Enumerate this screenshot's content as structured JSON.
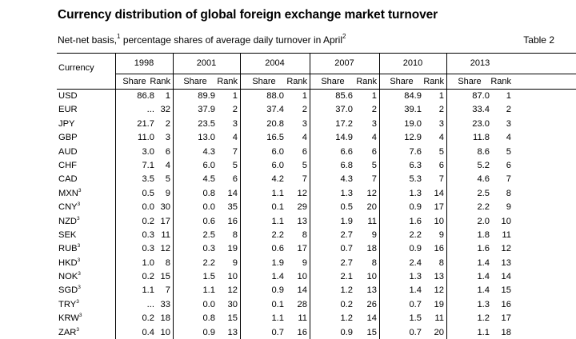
{
  "title": "Currency distribution of global foreign exchange market turnover",
  "subtitle": {
    "part1": "Net-net basis,",
    "note1": "1",
    "part2": " percentage shares of average daily turnover in April",
    "note2": "2"
  },
  "table_label": "Table 2",
  "header": {
    "currency": "Currency",
    "years": [
      "1998",
      "2001",
      "2004",
      "2007",
      "2010",
      "2013"
    ],
    "share": "Share",
    "rank": "Rank"
  },
  "rows": [
    {
      "currency": "USD",
      "note": "",
      "values": [
        [
          "86.8",
          "1"
        ],
        [
          "89.9",
          "1"
        ],
        [
          "88.0",
          "1"
        ],
        [
          "85.6",
          "1"
        ],
        [
          "84.9",
          "1"
        ],
        [
          "87.0",
          "1"
        ]
      ]
    },
    {
      "currency": "EUR",
      "note": "",
      "values": [
        [
          "...",
          "32"
        ],
        [
          "37.9",
          "2"
        ],
        [
          "37.4",
          "2"
        ],
        [
          "37.0",
          "2"
        ],
        [
          "39.1",
          "2"
        ],
        [
          "33.4",
          "2"
        ]
      ]
    },
    {
      "currency": "JPY",
      "note": "",
      "values": [
        [
          "21.7",
          "2"
        ],
        [
          "23.5",
          "3"
        ],
        [
          "20.8",
          "3"
        ],
        [
          "17.2",
          "3"
        ],
        [
          "19.0",
          "3"
        ],
        [
          "23.0",
          "3"
        ]
      ]
    },
    {
      "currency": "GBP",
      "note": "",
      "values": [
        [
          "11.0",
          "3"
        ],
        [
          "13.0",
          "4"
        ],
        [
          "16.5",
          "4"
        ],
        [
          "14.9",
          "4"
        ],
        [
          "12.9",
          "4"
        ],
        [
          "11.8",
          "4"
        ]
      ]
    },
    {
      "currency": "AUD",
      "note": "",
      "values": [
        [
          "3.0",
          "6"
        ],
        [
          "4.3",
          "7"
        ],
        [
          "6.0",
          "6"
        ],
        [
          "6.6",
          "6"
        ],
        [
          "7.6",
          "5"
        ],
        [
          "8.6",
          "5"
        ]
      ]
    },
    {
      "currency": "CHF",
      "note": "",
      "values": [
        [
          "7.1",
          "4"
        ],
        [
          "6.0",
          "5"
        ],
        [
          "6.0",
          "5"
        ],
        [
          "6.8",
          "5"
        ],
        [
          "6.3",
          "6"
        ],
        [
          "5.2",
          "6"
        ]
      ]
    },
    {
      "currency": "CAD",
      "note": "",
      "values": [
        [
          "3.5",
          "5"
        ],
        [
          "4.5",
          "6"
        ],
        [
          "4.2",
          "7"
        ],
        [
          "4.3",
          "7"
        ],
        [
          "5.3",
          "7"
        ],
        [
          "4.6",
          "7"
        ]
      ]
    },
    {
      "currency": "MXN",
      "note": "3",
      "values": [
        [
          "0.5",
          "9"
        ],
        [
          "0.8",
          "14"
        ],
        [
          "1.1",
          "12"
        ],
        [
          "1.3",
          "12"
        ],
        [
          "1.3",
          "14"
        ],
        [
          "2.5",
          "8"
        ]
      ]
    },
    {
      "currency": "CNY",
      "note": "3",
      "values": [
        [
          "0.0",
          "30"
        ],
        [
          "0.0",
          "35"
        ],
        [
          "0.1",
          "29"
        ],
        [
          "0.5",
          "20"
        ],
        [
          "0.9",
          "17"
        ],
        [
          "2.2",
          "9"
        ]
      ]
    },
    {
      "currency": "NZD",
      "note": "3",
      "values": [
        [
          "0.2",
          "17"
        ],
        [
          "0.6",
          "16"
        ],
        [
          "1.1",
          "13"
        ],
        [
          "1.9",
          "11"
        ],
        [
          "1.6",
          "10"
        ],
        [
          "2.0",
          "10"
        ]
      ]
    },
    {
      "currency": "SEK",
      "note": "",
      "values": [
        [
          "0.3",
          "11"
        ],
        [
          "2.5",
          "8"
        ],
        [
          "2.2",
          "8"
        ],
        [
          "2.7",
          "9"
        ],
        [
          "2.2",
          "9"
        ],
        [
          "1.8",
          "11"
        ]
      ]
    },
    {
      "currency": "RUB",
      "note": "3",
      "values": [
        [
          "0.3",
          "12"
        ],
        [
          "0.3",
          "19"
        ],
        [
          "0.6",
          "17"
        ],
        [
          "0.7",
          "18"
        ],
        [
          "0.9",
          "16"
        ],
        [
          "1.6",
          "12"
        ]
      ]
    },
    {
      "currency": "HKD",
      "note": "3",
      "values": [
        [
          "1.0",
          "8"
        ],
        [
          "2.2",
          "9"
        ],
        [
          "1.9",
          "9"
        ],
        [
          "2.7",
          "8"
        ],
        [
          "2.4",
          "8"
        ],
        [
          "1.4",
          "13"
        ]
      ]
    },
    {
      "currency": "NOK",
      "note": "3",
      "values": [
        [
          "0.2",
          "15"
        ],
        [
          "1.5",
          "10"
        ],
        [
          "1.4",
          "10"
        ],
        [
          "2.1",
          "10"
        ],
        [
          "1.3",
          "13"
        ],
        [
          "1.4",
          "14"
        ]
      ]
    },
    {
      "currency": "SGD",
      "note": "3",
      "values": [
        [
          "1.1",
          "7"
        ],
        [
          "1.1",
          "12"
        ],
        [
          "0.9",
          "14"
        ],
        [
          "1.2",
          "13"
        ],
        [
          "1.4",
          "12"
        ],
        [
          "1.4",
          "15"
        ]
      ]
    },
    {
      "currency": "TRY",
      "note": "3",
      "values": [
        [
          "...",
          "33"
        ],
        [
          "0.0",
          "30"
        ],
        [
          "0.1",
          "28"
        ],
        [
          "0.2",
          "26"
        ],
        [
          "0.7",
          "19"
        ],
        [
          "1.3",
          "16"
        ]
      ]
    },
    {
      "currency": "KRW",
      "note": "3",
      "values": [
        [
          "0.2",
          "18"
        ],
        [
          "0.8",
          "15"
        ],
        [
          "1.1",
          "11"
        ],
        [
          "1.2",
          "14"
        ],
        [
          "1.5",
          "11"
        ],
        [
          "1.2",
          "17"
        ]
      ]
    },
    {
      "currency": "ZAR",
      "note": "3",
      "values": [
        [
          "0.4",
          "10"
        ],
        [
          "0.9",
          "13"
        ],
        [
          "0.7",
          "16"
        ],
        [
          "0.9",
          "15"
        ],
        [
          "0.7",
          "20"
        ],
        [
          "1.1",
          "18"
        ]
      ]
    }
  ]
}
